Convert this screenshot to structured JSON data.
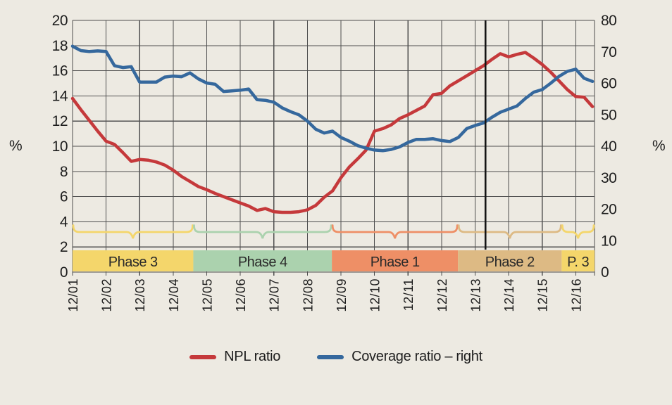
{
  "colors": {
    "background": "#EDEAE2",
    "grid": "#4F4F4F",
    "text": "#1D1D1D",
    "event_line": "#141414",
    "npl_red": "#C5393B",
    "coverage_blue": "#35689D"
  },
  "chart_data": {
    "type": "line",
    "title": "",
    "x_axis": {
      "total_years": 15.56,
      "tick_labels": [
        "12/01",
        "12/02",
        "12/03",
        "12/04",
        "12/05",
        "12/06",
        "12/07",
        "12/08",
        "12/09",
        "12/10",
        "12/11",
        "12/12",
        "12/13",
        "12/14",
        "12/15",
        "12/16"
      ]
    },
    "left_axis": {
      "unit_label": "%",
      "min": 0,
      "max": 20,
      "ticks": [
        0,
        2,
        4,
        6,
        8,
        10,
        12,
        14,
        16,
        18,
        20
      ]
    },
    "right_axis": {
      "unit_label": "%",
      "min": 0,
      "max": 80,
      "ticks": [
        0,
        10,
        20,
        30,
        40,
        50,
        60,
        70,
        80
      ]
    },
    "series": [
      {
        "name": "NPL ratio",
        "axis": "left",
        "color": "#C5393B",
        "x_start_year": 0,
        "x_step_years": 0.25,
        "values": [
          13.8,
          12.9,
          12.05,
          11.2,
          10.4,
          10.15,
          9.5,
          8.8,
          8.95,
          8.9,
          8.75,
          8.5,
          8.1,
          7.6,
          7.2,
          6.8,
          6.55,
          6.25,
          6.0,
          5.75,
          5.5,
          5.25,
          4.9,
          5.05,
          4.8,
          4.75,
          4.75,
          4.8,
          4.95,
          5.3,
          5.95,
          6.45,
          7.5,
          8.35,
          9.0,
          9.7,
          11.2,
          11.4,
          11.7,
          12.2,
          12.5,
          12.85,
          13.2,
          14.1,
          14.2,
          14.8,
          15.2,
          15.6,
          16.0,
          16.4,
          16.9,
          17.35,
          17.1,
          17.3,
          17.45,
          17.0,
          16.5,
          15.9,
          15.2,
          14.5,
          13.95,
          13.9,
          13.15
        ]
      },
      {
        "name": "Coverage ratio – right",
        "axis": "right",
        "color": "#35689D",
        "x_start_year": 0,
        "x_step_years": 0.25,
        "values": [
          71.8,
          70.4,
          70.1,
          70.3,
          70.1,
          65.6,
          65.0,
          65.3,
          60.4,
          60.4,
          60.4,
          62.0,
          62.3,
          62.1,
          63.3,
          61.4,
          60.1,
          59.7,
          57.4,
          57.6,
          57.8,
          58.2,
          54.8,
          54.6,
          54.0,
          52.2,
          51.0,
          50.0,
          48.0,
          45.4,
          44.2,
          44.8,
          42.8,
          41.6,
          40.2,
          39.4,
          38.8,
          38.6,
          39.0,
          39.8,
          41.2,
          42.2,
          42.2,
          42.4,
          41.8,
          41.5,
          42.8,
          45.6,
          46.6,
          47.4,
          49.2,
          50.8,
          51.8,
          52.8,
          55.2,
          57.2,
          58.0,
          60.0,
          62.2,
          63.8,
          64.5,
          61.6,
          60.6
        ]
      }
    ],
    "phases": [
      {
        "label": "Phase 3",
        "color": "#F4D66B",
        "start_year": 0,
        "end_year": 3.6
      },
      {
        "label": "Phase 4",
        "color": "#ABD2AE",
        "start_year": 3.6,
        "end_year": 7.73
      },
      {
        "label": "Phase 1",
        "color": "#EE8F66",
        "start_year": 7.73,
        "end_year": 11.49
      },
      {
        "label": "Phase 2",
        "color": "#DDBA84",
        "start_year": 11.49,
        "end_year": 14.58
      },
      {
        "label": "P. 3",
        "color": "#F4D66B",
        "start_year": 14.58,
        "end_year": 15.56
      }
    ],
    "event_line": {
      "x_year": 12.31
    }
  },
  "legend": {
    "items": [
      {
        "label": "NPL ratio",
        "color": "#C5393B"
      },
      {
        "label": "Coverage ratio – right",
        "color": "#35689D"
      }
    ]
  }
}
